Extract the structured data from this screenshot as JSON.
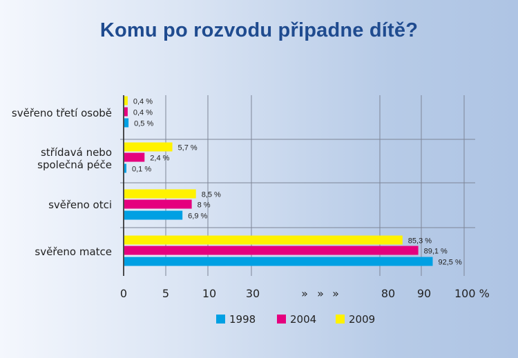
{
  "chart_data": {
    "type": "bar",
    "orientation": "horizontal",
    "title": "Komu po rozvodu připadne dítě?",
    "categories": [
      "svěřeno třetí osobě",
      "střídavá nebo společná péče",
      "svěřeno otci",
      "svěřeno matce"
    ],
    "category_lines": [
      [
        "svěřeno třetí osobě"
      ],
      [
        "střídavá nebo",
        "společná péče"
      ],
      [
        "svěřeno otci"
      ],
      [
        "svěřeno matce"
      ]
    ],
    "series": [
      {
        "name": "2009",
        "color": "#fff200",
        "values": [
          0.4,
          5.7,
          8.5,
          85.3
        ],
        "labels": [
          "0,4 %",
          "5,7 %",
          "8,5 %",
          "85,3 %"
        ]
      },
      {
        "name": "2004",
        "color": "#e5007e",
        "values": [
          0.4,
          2.4,
          8,
          89.1
        ],
        "labels": [
          "0,4 %",
          "2,4 %",
          "8 %",
          "89,1 %"
        ]
      },
      {
        "name": "1998",
        "color": "#00a0e3",
        "values": [
          0.5,
          0.1,
          6.9,
          92.5
        ],
        "labels": [
          "0,5 %",
          "0,1 %",
          "6,9 %",
          "92,5 %"
        ]
      }
    ],
    "x_ticks": [
      "0",
      "5",
      "10",
      "30",
      "»",
      "»",
      "»",
      "80",
      "90",
      "100 %"
    ],
    "x_axis_breaks": true,
    "legend": [
      "1998",
      "2004",
      "2009"
    ],
    "legend_position": "bottom",
    "grid": true
  }
}
